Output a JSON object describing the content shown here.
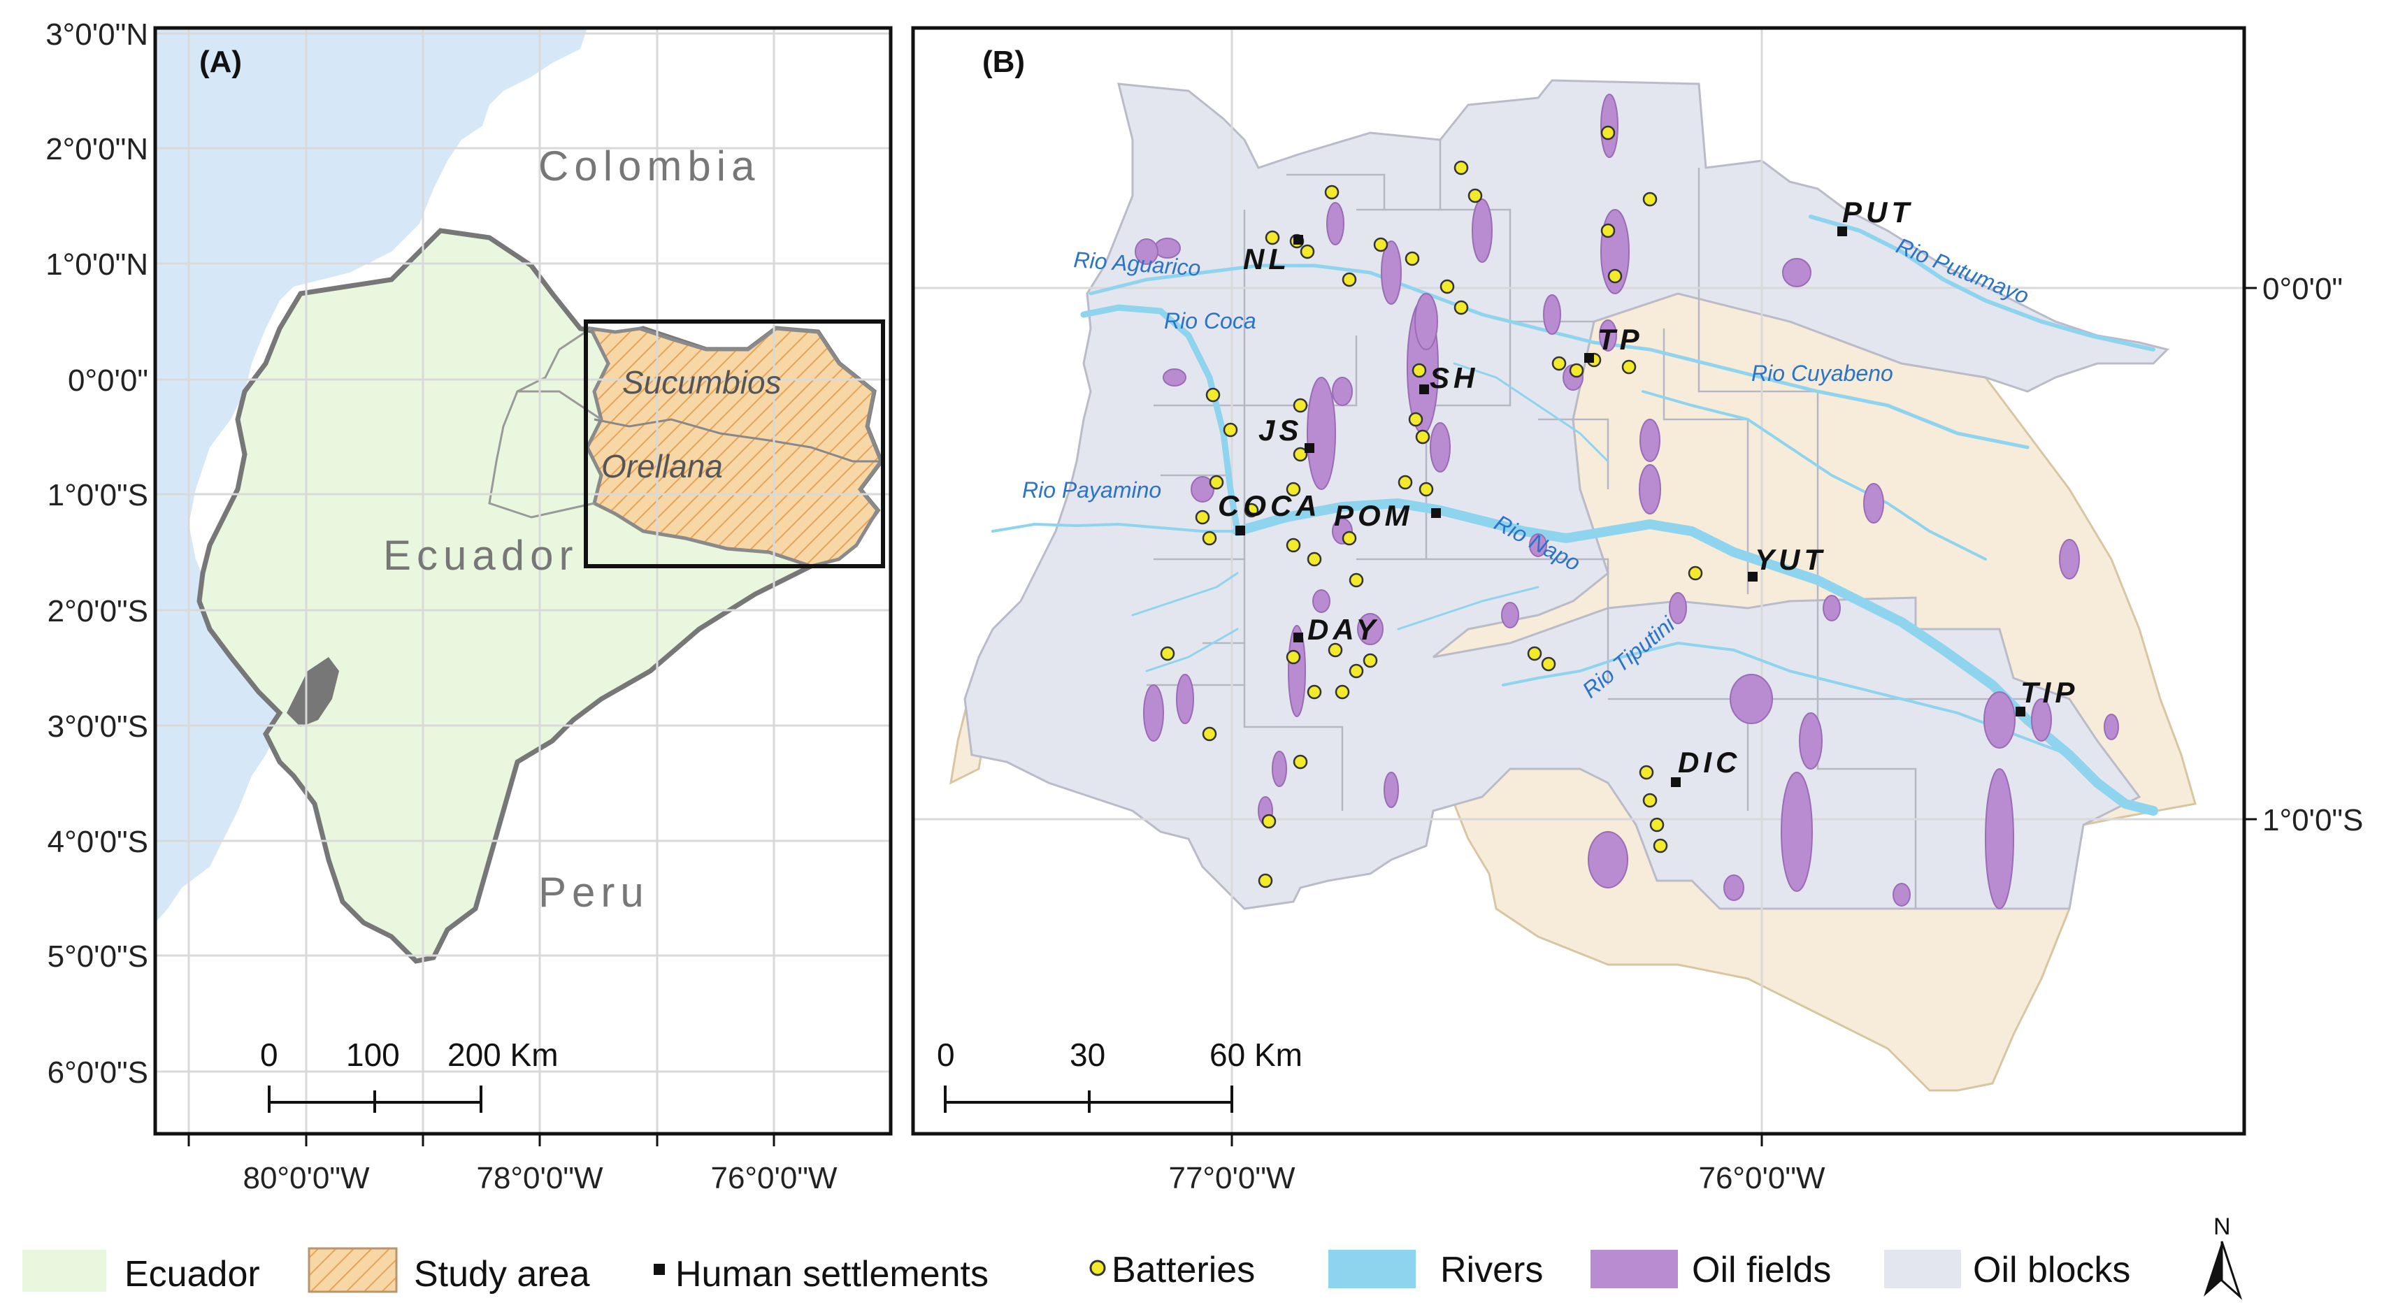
{
  "panel_a": {
    "label": "(A)",
    "lat_labels": [
      "3°0'0\"N",
      "2°0'0\"N",
      "1°0'0\"N",
      "0°0'0\"",
      "1°0'0\"S",
      "2°0'0\"S",
      "3°0'0\"S",
      "4°0'0\"S",
      "5°0'0\"S",
      "6°0'0\"S"
    ],
    "lon_labels": [
      "80°0'0\"W",
      "78°0'0\"W",
      "76°0'0\"W"
    ],
    "countries": {
      "colombia": "Colombia",
      "ecuador": "Ecuador",
      "peru": "Peru"
    },
    "provinces": {
      "sucumbios": "Sucumbios",
      "orellana": "Orellana"
    },
    "scalebar": [
      "0",
      "100",
      "200 Km"
    ]
  },
  "panel_b": {
    "label": "(B)",
    "lat_labels": [
      "0°0'0\"",
      "1°0'0\"S"
    ],
    "lon_labels": [
      "77°0'0\"W",
      "76°0'0\"W"
    ],
    "rivers": {
      "aguarico": "Rio Aguarico",
      "coca": "Rio Coca",
      "putumayo": "Rio Putumayo",
      "cuyabeno": "Rio Cuyabeno",
      "payamino": "Rio Payamino",
      "napo": "Rio Napo",
      "tiputini": "Rio Tiputini"
    },
    "settlements": {
      "put": "PUT",
      "nl": "NL",
      "tp": "TP",
      "sh": "SH",
      "js": "JS",
      "coca": "COCA",
      "pom": "POM",
      "yut": "YUT",
      "day": "DAY",
      "tip": "TIP",
      "dic": "DIC"
    },
    "scalebar": [
      "0",
      "30",
      "60 Km"
    ]
  },
  "legend": {
    "ecuador": "Ecuador",
    "study_area": "Study area",
    "settlements": "Human settlements",
    "batteries": "Batteries",
    "rivers": "Rivers",
    "oil_fields": "Oil fields",
    "oil_blocks": "Oil blocks",
    "north": "N"
  },
  "colors": {
    "ocean": "#d6e8f8",
    "ecuador": "#e9f7df",
    "study_area": "#f7d7a6",
    "oil_blocks": "#e3e6ef",
    "oil_fields": "#b98bd0",
    "rivers": "#8fd4ee",
    "batteries": "#f2ea2b",
    "peru_tan": "#f6ecd9"
  }
}
